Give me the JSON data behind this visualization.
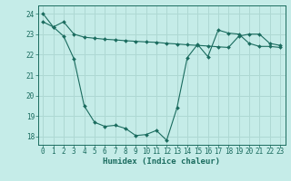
{
  "xlabel": "Humidex (Indice chaleur)",
  "background_color": "#c5ece8",
  "grid_color": "#aed8d3",
  "line_color": "#1a6b5e",
  "x_ticks": [
    0,
    1,
    2,
    3,
    4,
    5,
    6,
    7,
    8,
    9,
    10,
    11,
    12,
    13,
    14,
    15,
    16,
    17,
    18,
    19,
    20,
    21,
    22,
    23
  ],
  "y_ticks": [
    18,
    19,
    20,
    21,
    22,
    23,
    24
  ],
  "ylim": [
    17.6,
    24.4
  ],
  "xlim": [
    -0.5,
    23.5
  ],
  "line1_x": [
    0,
    1,
    2,
    3,
    4,
    5,
    6,
    7,
    8,
    9,
    10,
    11,
    12,
    13,
    14,
    15,
    16,
    17,
    18,
    19,
    20,
    21,
    22,
    23
  ],
  "line1_y": [
    23.6,
    23.35,
    23.6,
    23.0,
    22.85,
    22.8,
    22.75,
    22.72,
    22.68,
    22.65,
    22.62,
    22.6,
    22.55,
    22.52,
    22.48,
    22.45,
    22.42,
    22.38,
    22.35,
    22.9,
    23.0,
    23.0,
    22.55,
    22.45
  ],
  "line2_x": [
    0,
    1,
    2,
    3,
    4,
    5,
    6,
    7,
    8,
    9,
    10,
    11,
    12,
    13,
    14,
    15,
    16,
    17,
    18,
    19,
    20,
    21,
    22,
    23
  ],
  "line2_y": [
    24.0,
    23.35,
    22.9,
    21.8,
    19.5,
    18.7,
    18.5,
    18.55,
    18.4,
    18.05,
    18.1,
    18.3,
    17.82,
    19.4,
    21.85,
    22.5,
    21.9,
    23.2,
    23.05,
    23.0,
    22.55,
    22.4,
    22.4,
    22.35
  ],
  "tick_fontsize": 5.5,
  "xlabel_fontsize": 6.5,
  "marker_size": 2.0
}
